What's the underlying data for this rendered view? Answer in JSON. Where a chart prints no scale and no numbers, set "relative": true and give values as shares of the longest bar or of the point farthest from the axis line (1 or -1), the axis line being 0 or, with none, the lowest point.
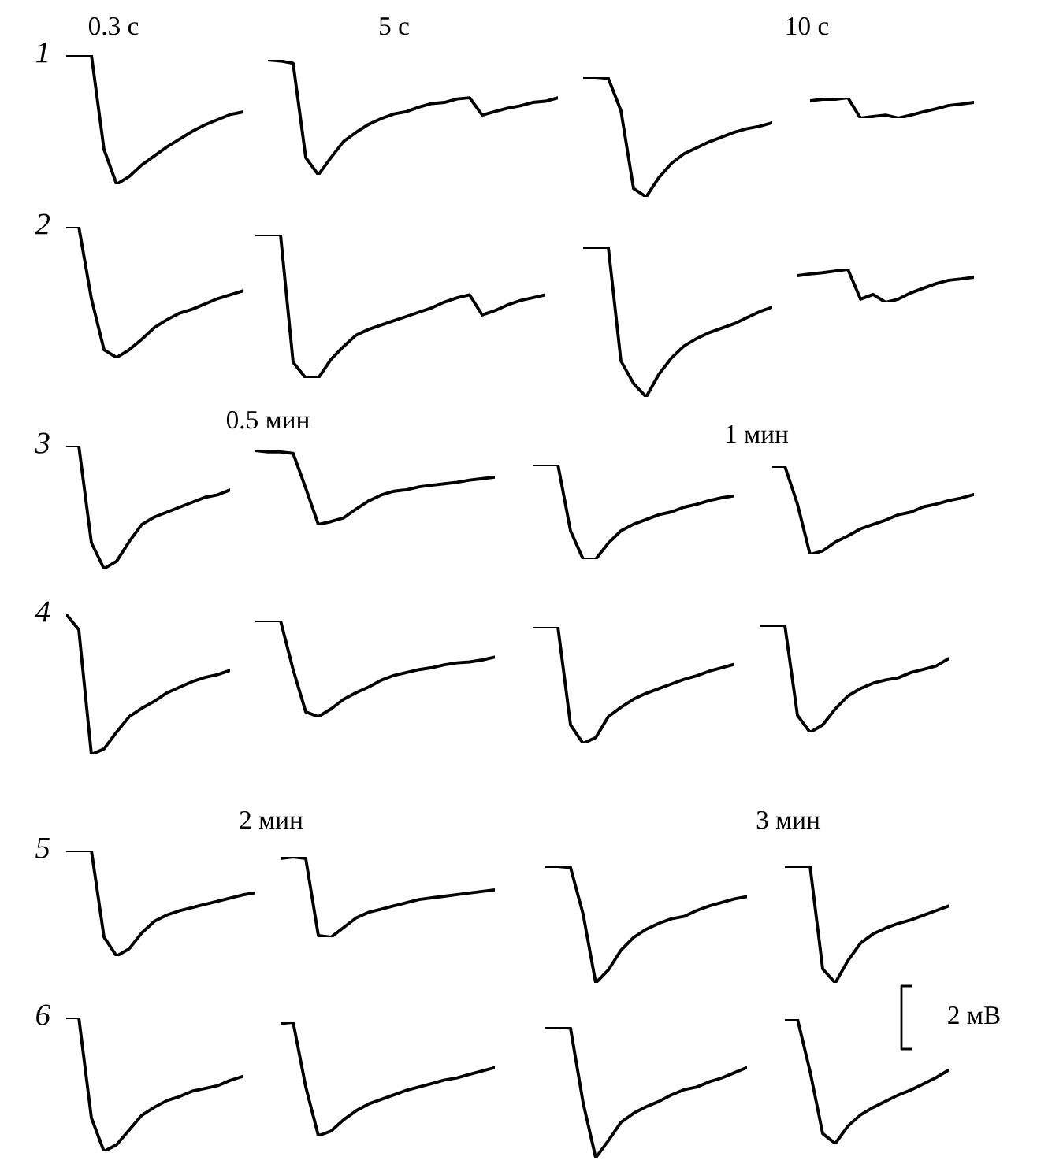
{
  "chart_data": [
    {
      "type": "line",
      "relative": true,
      "ylabel": "1",
      "annotations": [
        "0.3 с"
      ],
      "categories": [
        null,
        null,
        null,
        null,
        null,
        null,
        null,
        null,
        null,
        null,
        null,
        null,
        null,
        null,
        null
      ],
      "series": [
        {
          "color": "#000000",
          "values": [
            1,
            1,
            1,
            0.27,
            0,
            0.06,
            0.15,
            0.22,
            0.29,
            0.35,
            0.41,
            0.46,
            0.5,
            0.54,
            0.56
          ]
        }
      ]
    },
    {
      "type": "line",
      "relative": true,
      "annotations": [
        "5 с"
      ],
      "categories": [
        null,
        null,
        null,
        null,
        null,
        null,
        null,
        null,
        null,
        null,
        null,
        null,
        null,
        null,
        null,
        null,
        null,
        null,
        null,
        null,
        null,
        null,
        null,
        null
      ],
      "series": [
        {
          "color": "#000000",
          "values": [
            1,
            0.99,
            0.97,
            0.15,
            0,
            0.15,
            0.29,
            0.37,
            0.44,
            0.49,
            0.53,
            0.55,
            0.59,
            0.62,
            0.63,
            0.66,
            0.67,
            0.52,
            0.55,
            0.58,
            0.6,
            0.63,
            0.64,
            0.67
          ]
        }
      ]
    },
    {
      "type": "line",
      "relative": true,
      "categories": [
        null,
        null,
        null,
        null,
        null,
        null,
        null,
        null,
        null,
        null,
        null,
        null,
        null,
        null,
        null,
        null
      ],
      "series": [
        {
          "color": "#000000",
          "values": [
            1,
            1,
            0.99,
            0.72,
            0.07,
            0,
            0.16,
            0.28,
            0.36,
            0.41,
            0.46,
            0.5,
            0.54,
            0.57,
            0.59,
            0.62
          ]
        }
      ]
    },
    {
      "type": "line",
      "relative": true,
      "annotations": [
        "10 с"
      ],
      "categories": [
        null,
        null,
        null,
        null,
        null,
        null,
        null,
        null,
        null,
        null,
        null,
        null,
        null,
        null
      ],
      "series": [
        {
          "color": "#000000",
          "values": [
            0.85,
            0.92,
            0.92,
            1,
            0,
            0.08,
            0.15,
            0,
            0.15,
            0.31,
            0.46,
            0.62,
            0.69,
            0.77
          ]
        }
      ]
    },
    {
      "type": "line",
      "relative": true,
      "ylabel": "2",
      "categories": [
        null,
        null,
        null,
        null,
        null,
        null,
        null,
        null,
        null,
        null,
        null,
        null,
        null,
        null,
        null
      ],
      "series": [
        {
          "color": "#000000",
          "values": [
            1,
            1,
            0.45,
            0.06,
            0,
            0.06,
            0.14,
            0.23,
            0.29,
            0.34,
            0.37,
            0.41,
            0.45,
            0.48,
            0.51
          ]
        }
      ]
    },
    {
      "type": "line",
      "relative": true,
      "categories": [
        null,
        null,
        null,
        null,
        null,
        null,
        null,
        null,
        null,
        null,
        null,
        null,
        null,
        null,
        null,
        null,
        null,
        null,
        null,
        null,
        null,
        null,
        null,
        null
      ],
      "series": [
        {
          "color": "#000000",
          "values": [
            1,
            1,
            1,
            0.11,
            0,
            0,
            0.13,
            0.22,
            0.3,
            0.34,
            0.37,
            0.4,
            0.43,
            0.46,
            0.49,
            0.53,
            0.56,
            0.58,
            0.44,
            0.47,
            0.51,
            0.54,
            0.56,
            0.58
          ]
        }
      ]
    },
    {
      "type": "line",
      "relative": true,
      "categories": [
        null,
        null,
        null,
        null,
        null,
        null,
        null,
        null,
        null,
        null,
        null,
        null,
        null,
        null,
        null,
        null
      ],
      "series": [
        {
          "color": "#000000",
          "values": [
            1,
            1,
            1,
            0.24,
            0.09,
            0,
            0.15,
            0.26,
            0.34,
            0.39,
            0.43,
            0.46,
            0.49,
            0.53,
            0.57,
            0.6
          ]
        }
      ]
    },
    {
      "type": "line",
      "relative": true,
      "categories": [
        null,
        null,
        null,
        null,
        null,
        null,
        null,
        null,
        null,
        null,
        null,
        null,
        null,
        null,
        null
      ],
      "series": [
        {
          "color": "#000000",
          "values": [
            0.81,
            0.86,
            0.9,
            0.95,
            1,
            0.1,
            0.24,
            0,
            0.1,
            0.29,
            0.43,
            0.57,
            0.67,
            0.71,
            0.76
          ]
        }
      ]
    },
    {
      "type": "line",
      "relative": true,
      "ylabel": "3",
      "categories": [
        null,
        null,
        null,
        null,
        null,
        null,
        null,
        null,
        null,
        null,
        null,
        null,
        null,
        null
      ],
      "series": [
        {
          "color": "#000000",
          "values": [
            1,
            1,
            0.21,
            0,
            0.06,
            0.22,
            0.36,
            0.42,
            0.46,
            0.5,
            0.54,
            0.58,
            0.6,
            0.64
          ]
        }
      ]
    },
    {
      "type": "line",
      "relative": true,
      "annotations": [
        "0.5 мин"
      ],
      "categories": [
        null,
        null,
        null,
        null,
        null,
        null,
        null,
        null,
        null,
        null,
        null,
        null,
        null,
        null,
        null,
        null,
        null,
        null,
        null,
        null
      ],
      "series": [
        {
          "color": "#000000",
          "values": [
            1,
            0.98,
            0.98,
            0.96,
            0.49,
            0,
            0.04,
            0.09,
            0.21,
            0.32,
            0.4,
            0.45,
            0.47,
            0.51,
            0.53,
            0.55,
            0.57,
            0.6,
            0.62,
            0.64
          ]
        }
      ]
    },
    {
      "type": "line",
      "relative": true,
      "categories": [
        null,
        null,
        null,
        null,
        null,
        null,
        null,
        null,
        null,
        null,
        null,
        null,
        null,
        null,
        null,
        null,
        null
      ],
      "series": [
        {
          "color": "#000000",
          "values": [
            1,
            1,
            1,
            0.3,
            0,
            0,
            0.17,
            0.3,
            0.37,
            0.42,
            0.47,
            0.5,
            0.55,
            0.58,
            0.62,
            0.65,
            0.67
          ]
        }
      ]
    },
    {
      "type": "line",
      "relative": true,
      "annotations": [
        "1 мин"
      ],
      "categories": [
        null,
        null,
        null,
        null,
        null,
        null,
        null,
        null,
        null,
        null,
        null,
        null,
        null,
        null,
        null,
        null,
        null
      ],
      "series": [
        {
          "color": "#000000",
          "values": [
            1,
            1,
            0.57,
            0,
            0.04,
            0.14,
            0.21,
            0.29,
            0.34,
            0.39,
            0.45,
            0.48,
            0.54,
            0.57,
            0.61,
            0.64,
            0.68
          ]
        }
      ]
    },
    {
      "type": "line",
      "relative": true,
      "ylabel": "4",
      "categories": [
        null,
        null,
        null,
        null,
        null,
        null,
        null,
        null,
        null,
        null,
        null,
        null,
        null,
        null
      ],
      "series": [
        {
          "color": "#000000",
          "values": [
            1,
            0.89,
            0,
            0.04,
            0.16,
            0.27,
            0.33,
            0.38,
            0.44,
            0.48,
            0.52,
            0.55,
            0.57,
            0.6
          ]
        }
      ]
    },
    {
      "type": "line",
      "relative": true,
      "categories": [
        null,
        null,
        null,
        null,
        null,
        null,
        null,
        null,
        null,
        null,
        null,
        null,
        null,
        null,
        null,
        null,
        null,
        null,
        null,
        null
      ],
      "series": [
        {
          "color": "#000000",
          "values": [
            1,
            1,
            1,
            0.49,
            0.05,
            0,
            0.08,
            0.18,
            0.25,
            0.31,
            0.38,
            0.43,
            0.46,
            0.49,
            0.51,
            0.54,
            0.56,
            0.57,
            0.59,
            0.62
          ]
        }
      ]
    },
    {
      "type": "line",
      "relative": true,
      "categories": [
        null,
        null,
        null,
        null,
        null,
        null,
        null,
        null,
        null,
        null,
        null,
        null,
        null,
        null,
        null,
        null,
        null
      ],
      "series": [
        {
          "color": "#000000",
          "values": [
            1,
            1,
            1,
            0.16,
            0,
            0.05,
            0.23,
            0.31,
            0.38,
            0.43,
            0.47,
            0.51,
            0.55,
            0.58,
            0.62,
            0.65,
            0.68
          ]
        }
      ]
    },
    {
      "type": "line",
      "relative": true,
      "categories": [
        null,
        null,
        null,
        null,
        null,
        null,
        null,
        null,
        null,
        null,
        null,
        null,
        null,
        null,
        null,
        null
      ],
      "series": [
        {
          "color": "#000000",
          "values": [
            1,
            1,
            1,
            0.16,
            0,
            0.07,
            0.22,
            0.34,
            0.41,
            0.46,
            0.49,
            0.51,
            0.56,
            0.59,
            0.62,
            0.69
          ]
        }
      ]
    },
    {
      "type": "line",
      "relative": true,
      "ylabel": "5",
      "categories": [
        null,
        null,
        null,
        null,
        null,
        null,
        null,
        null,
        null,
        null,
        null,
        null,
        null,
        null,
        null,
        null
      ],
      "series": [
        {
          "color": "#000000",
          "values": [
            1,
            1,
            1,
            0.18,
            0,
            0.07,
            0.22,
            0.33,
            0.39,
            0.43,
            0.46,
            0.49,
            0.52,
            0.55,
            0.58,
            0.6
          ]
        }
      ]
    },
    {
      "type": "line",
      "relative": true,
      "annotations": [
        "2 мин"
      ],
      "categories": [
        null,
        null,
        null,
        null,
        null,
        null,
        null,
        null,
        null,
        null,
        null,
        null,
        null,
        null,
        null,
        null,
        null,
        null
      ],
      "series": [
        {
          "color": "#000000",
          "values": [
            0.98,
            1,
            0.98,
            0.02,
            0,
            0.12,
            0.24,
            0.31,
            0.35,
            0.39,
            0.43,
            0.47,
            0.49,
            0.51,
            0.53,
            0.55,
            0.57,
            0.59
          ]
        }
      ]
    },
    {
      "type": "line",
      "relative": true,
      "categories": [
        null,
        null,
        null,
        null,
        null,
        null,
        null,
        null,
        null,
        null,
        null,
        null,
        null,
        null,
        null,
        null,
        null
      ],
      "series": [
        {
          "color": "#000000",
          "values": [
            1,
            1,
            0.99,
            0.59,
            0,
            0.11,
            0.28,
            0.39,
            0.46,
            0.51,
            0.55,
            0.57,
            0.62,
            0.66,
            0.69,
            0.72,
            0.74
          ]
        }
      ]
    },
    {
      "type": "line",
      "relative": true,
      "annotations": [
        "3 мин"
      ],
      "categories": [
        null,
        null,
        null,
        null,
        null,
        null,
        null,
        null,
        null,
        null,
        null,
        null,
        null,
        null
      ],
      "series": [
        {
          "color": "#000000",
          "values": [
            1,
            1,
            1,
            0.12,
            0,
            0.19,
            0.34,
            0.42,
            0.47,
            0.51,
            0.54,
            0.58,
            0.62,
            0.66
          ]
        }
      ]
    },
    {
      "type": "line",
      "relative": true,
      "ylabel": "6",
      "categories": [
        null,
        null,
        null,
        null,
        null,
        null,
        null,
        null,
        null,
        null,
        null,
        null,
        null,
        null,
        null
      ],
      "series": [
        {
          "color": "#000000",
          "values": [
            1,
            1,
            0.25,
            0,
            0.05,
            0.16,
            0.27,
            0.33,
            0.38,
            0.41,
            0.45,
            0.47,
            0.49,
            0.53,
            0.56
          ]
        }
      ]
    },
    {
      "type": "line",
      "relative": true,
      "categories": [
        null,
        null,
        null,
        null,
        null,
        null,
        null,
        null,
        null,
        null,
        null,
        null,
        null,
        null,
        null,
        null,
        null,
        null
      ],
      "series": [
        {
          "color": "#000000",
          "values": [
            0.99,
            1,
            0.43,
            0,
            0.04,
            0.14,
            0.22,
            0.28,
            0.32,
            0.36,
            0.4,
            0.43,
            0.46,
            0.49,
            0.51,
            0.54,
            0.57,
            0.6
          ]
        }
      ]
    },
    {
      "type": "line",
      "relative": true,
      "categories": [
        null,
        null,
        null,
        null,
        null,
        null,
        null,
        null,
        null,
        null,
        null,
        null,
        null,
        null,
        null,
        null,
        null
      ],
      "series": [
        {
          "color": "#000000",
          "values": [
            1,
            1,
            0.99,
            0.42,
            0,
            0.13,
            0.27,
            0.34,
            0.39,
            0.43,
            0.48,
            0.52,
            0.54,
            0.58,
            0.61,
            0.65,
            0.69
          ]
        }
      ]
    },
    {
      "type": "line",
      "relative": true,
      "annotations": [
        "2 мВ"
      ],
      "categories": [
        null,
        null,
        null,
        null,
        null,
        null,
        null,
        null,
        null,
        null,
        null,
        null,
        null,
        null
      ],
      "series": [
        {
          "color": "#000000",
          "values": [
            1,
            1,
            0.58,
            0.08,
            0,
            0.14,
            0.23,
            0.29,
            0.34,
            0.39,
            0.43,
            0.48,
            0.53,
            0.59
          ]
        }
      ]
    }
  ]
}
